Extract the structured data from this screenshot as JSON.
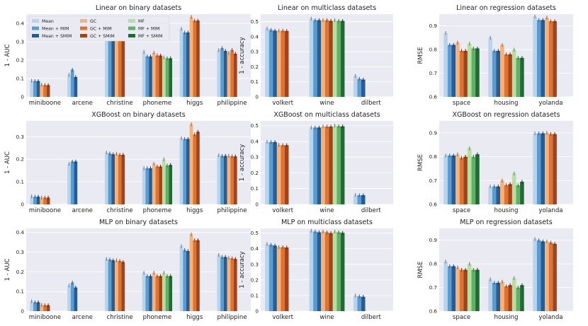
{
  "legend": {
    "entries": [
      {
        "name": "Mean",
        "color": "#b9d3ea"
      },
      {
        "name": "Mean + MIM",
        "color": "#5b9bd0"
      },
      {
        "name": "Mean + SMIM",
        "color": "#255d96"
      },
      {
        "name": "GC",
        "color": "#f5b37c"
      },
      {
        "name": "GC + MIM",
        "color": "#df7331"
      },
      {
        "name": "GC + SMIM",
        "color": "#a64218"
      },
      {
        "name": "MF",
        "color": "#b7dfa2"
      },
      {
        "name": "MF + MIM",
        "color": "#63b167"
      },
      {
        "name": "MF + SMIM",
        "color": "#206b34"
      }
    ]
  },
  "chart_data": [
    {
      "type": "bar",
      "title": "Linear on binary datasets",
      "ylabel": "1 - AUC",
      "ylim": [
        0,
        0.45
      ],
      "yticks": [
        0,
        0.1,
        0.2,
        0.3,
        0.4
      ],
      "categories": [
        "miniboone",
        "arcene",
        "christine",
        "phoneme",
        "higgs",
        "philippine"
      ],
      "values": [
        [
          0.088,
          0.086,
          0.086,
          0.066,
          0.064,
          0.064,
          null,
          null,
          null
        ],
        [
          0.12,
          0.148,
          0.108,
          null,
          null,
          null,
          null,
          null,
          null
        ],
        [
          0.335,
          0.32,
          0.32,
          0.335,
          0.32,
          0.33,
          null,
          null,
          null
        ],
        [
          0.245,
          0.22,
          0.22,
          0.24,
          0.225,
          0.225,
          0.215,
          0.21,
          0.21
        ],
        [
          0.37,
          0.35,
          0.35,
          0.435,
          0.415,
          0.415,
          null,
          null,
          null
        ],
        [
          0.255,
          0.265,
          0.25,
          0.24,
          0.255,
          0.235,
          null,
          null,
          null
        ]
      ]
    },
    {
      "type": "bar",
      "title": "Linear on multiclass datasets",
      "ylabel": "1 - accuracy",
      "ylim": [
        0,
        0.55
      ],
      "yticks": [
        0,
        0.1,
        0.2,
        0.3,
        0.4,
        0.5
      ],
      "categories": [
        "volkert",
        "wine",
        "dilbert"
      ],
      "values": [
        [
          0.455,
          0.445,
          0.44,
          0.44,
          0.44,
          0.438,
          null,
          null,
          null
        ],
        [
          0.52,
          0.51,
          0.51,
          0.51,
          0.51,
          0.505,
          0.51,
          0.505,
          0.505
        ],
        [
          0.14,
          0.12,
          0.115,
          null,
          null,
          null,
          null,
          null,
          null
        ]
      ]
    },
    {
      "type": "bar",
      "title": "Linear on regression datasets",
      "ylabel": "RMSE",
      "ylim": [
        0.6,
        0.95
      ],
      "yticks": [
        0.6,
        0.7,
        0.8,
        0.9
      ],
      "categories": [
        "space",
        "housing",
        "yolanda"
      ],
      "values": [
        [
          0.87,
          0.82,
          0.82,
          0.83,
          0.795,
          0.795,
          0.825,
          0.805,
          0.805
        ],
        [
          0.85,
          0.795,
          0.795,
          0.82,
          0.78,
          0.78,
          0.8,
          0.765,
          0.765
        ],
        [
          0.94,
          0.925,
          0.925,
          0.935,
          0.92,
          0.92,
          null,
          null,
          null
        ]
      ]
    },
    {
      "type": "bar",
      "title": "XGBoost on binary datasets",
      "ylabel": "1 - AUC",
      "ylim": [
        0,
        0.37
      ],
      "yticks": [
        0,
        0.1,
        0.2,
        0.3
      ],
      "categories": [
        "miniboone",
        "arcene",
        "christine",
        "phoneme",
        "higgs",
        "philippine"
      ],
      "values": [
        [
          0.035,
          0.034,
          0.034,
          0.03,
          0.03,
          0.03,
          null,
          null,
          null
        ],
        [
          0.18,
          0.19,
          0.19,
          null,
          null,
          null,
          null,
          null,
          null
        ],
        [
          0.23,
          0.226,
          0.222,
          0.225,
          0.22,
          0.22,
          null,
          null,
          null
        ],
        [
          0.16,
          0.16,
          0.16,
          0.18,
          0.168,
          0.168,
          0.2,
          0.172,
          0.175
        ],
        [
          0.293,
          0.29,
          0.29,
          0.355,
          0.31,
          0.322,
          null,
          null,
          null
        ],
        [
          0.218,
          0.215,
          0.215,
          0.215,
          0.213,
          0.213,
          null,
          null,
          null
        ]
      ]
    },
    {
      "type": "bar",
      "title": "XGBoost on multiclass datasets",
      "ylabel": "1 - accuracy",
      "ylim": [
        0,
        0.53
      ],
      "yticks": [
        0,
        0.1,
        0.2,
        0.3,
        0.4,
        0.5
      ],
      "categories": [
        "volkert",
        "wine",
        "dilbert"
      ],
      "values": [
        [
          0.398,
          0.396,
          0.396,
          0.378,
          0.376,
          0.376,
          null,
          null,
          null
        ],
        [
          0.488,
          0.488,
          0.488,
          0.495,
          0.494,
          0.494,
          0.5,
          0.496,
          0.496
        ],
        [
          0.06,
          0.058,
          0.058,
          null,
          null,
          null,
          null,
          null,
          null
        ]
      ]
    },
    {
      "type": "bar",
      "title": "XGBoost on regression datasets",
      "ylabel": "RMSE",
      "ylim": [
        0.6,
        0.95
      ],
      "yticks": [
        0.6,
        0.7,
        0.8,
        0.9
      ],
      "categories": [
        "space",
        "housing",
        "yolanda"
      ],
      "values": [
        [
          0.805,
          0.805,
          0.805,
          0.81,
          0.795,
          0.8,
          0.835,
          0.8,
          0.81
        ],
        [
          0.675,
          0.675,
          0.675,
          0.7,
          0.68,
          0.685,
          0.73,
          0.68,
          0.695
        ],
        [
          0.898,
          0.898,
          0.898,
          0.9,
          0.895,
          0.895,
          null,
          null,
          null
        ]
      ]
    },
    {
      "type": "bar",
      "title": "MLP on binary datasets",
      "ylabel": "1 - AUC",
      "ylim": [
        0,
        0.42
      ],
      "yticks": [
        0,
        0.1,
        0.2,
        0.3,
        0.4
      ],
      "categories": [
        "miniboone",
        "arcene",
        "christine",
        "phoneme",
        "higgs",
        "philippine"
      ],
      "values": [
        [
          0.05,
          0.045,
          0.045,
          0.032,
          0.03,
          0.03,
          null,
          null,
          null
        ],
        [
          0.13,
          0.145,
          0.12,
          null,
          null,
          null,
          null,
          null,
          null
        ],
        [
          0.265,
          0.262,
          0.258,
          0.258,
          0.255,
          0.25,
          null,
          null,
          null
        ],
        [
          0.195,
          0.178,
          0.178,
          0.195,
          0.178,
          0.178,
          0.195,
          0.178,
          0.178
        ],
        [
          0.33,
          0.31,
          0.305,
          0.39,
          0.36,
          0.36,
          null,
          null,
          null
        ],
        [
          0.285,
          0.275,
          0.275,
          0.27,
          0.268,
          0.265,
          null,
          null,
          null
        ]
      ]
    },
    {
      "type": "bar",
      "title": "MLP on multiclass datasets",
      "ylabel": "1 - accuracy",
      "ylim": [
        0,
        0.53
      ],
      "yticks": [
        0,
        0.1,
        0.2,
        0.3,
        0.4,
        0.5
      ],
      "categories": [
        "volkert",
        "wine",
        "dilbert"
      ],
      "values": [
        [
          0.43,
          0.425,
          0.42,
          0.41,
          0.41,
          0.408,
          null,
          null,
          null
        ],
        [
          0.515,
          0.51,
          0.505,
          0.51,
          0.505,
          0.5,
          0.51,
          0.505,
          0.502
        ],
        [
          0.1,
          0.095,
          0.092,
          null,
          null,
          null,
          null,
          null,
          null
        ]
      ]
    },
    {
      "type": "bar",
      "title": "MLP on regression datasets",
      "ylabel": "RMSE",
      "ylim": [
        0.6,
        0.95
      ],
      "yticks": [
        0.6,
        0.7,
        0.8,
        0.9
      ],
      "categories": [
        "space",
        "housing",
        "yolanda"
      ],
      "values": [
        [
          0.81,
          0.79,
          0.79,
          0.785,
          0.775,
          0.775,
          0.8,
          0.775,
          0.775
        ],
        [
          0.735,
          0.72,
          0.72,
          0.725,
          0.705,
          0.71,
          0.74,
          0.7,
          0.71
        ],
        [
          0.905,
          0.9,
          0.895,
          0.895,
          0.89,
          0.885,
          null,
          null,
          null
        ]
      ]
    }
  ]
}
